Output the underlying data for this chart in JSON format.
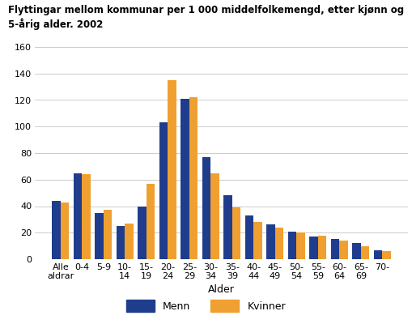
{
  "title_line1": "Flyttingar mellom kommunar per 1 000 middelfolkemengd, etter kjønn og",
  "title_line2": "5-årig alder. 2002",
  "categories": [
    "Alle\naldrar",
    "0-4",
    "5-9",
    "10-\n14",
    "15-\n19",
    "20-\n24",
    "25-\n29",
    "30-\n34",
    "35-\n39",
    "40-\n44",
    "45-\n49",
    "50-\n54",
    "55-\n59",
    "60-\n64",
    "65-\n69",
    "70-"
  ],
  "menn": [
    44,
    65,
    35,
    25,
    40,
    103,
    121,
    77,
    48,
    33,
    26,
    21,
    17,
    15,
    12,
    7
  ],
  "kvinner": [
    43,
    64,
    37,
    27,
    57,
    135,
    122,
    65,
    39,
    28,
    24,
    20,
    18,
    14,
    10,
    6
  ],
  "menn_color": "#1f3d8c",
  "kvinner_color": "#f0a030",
  "xlabel": "Alder",
  "ylim": [
    0,
    160
  ],
  "yticks": [
    0,
    20,
    40,
    60,
    80,
    100,
    120,
    140,
    160
  ],
  "legend_menn": "Menn",
  "legend_kvinner": "Kvinner",
  "bg_color": "#ffffff",
  "grid_color": "#cccccc"
}
